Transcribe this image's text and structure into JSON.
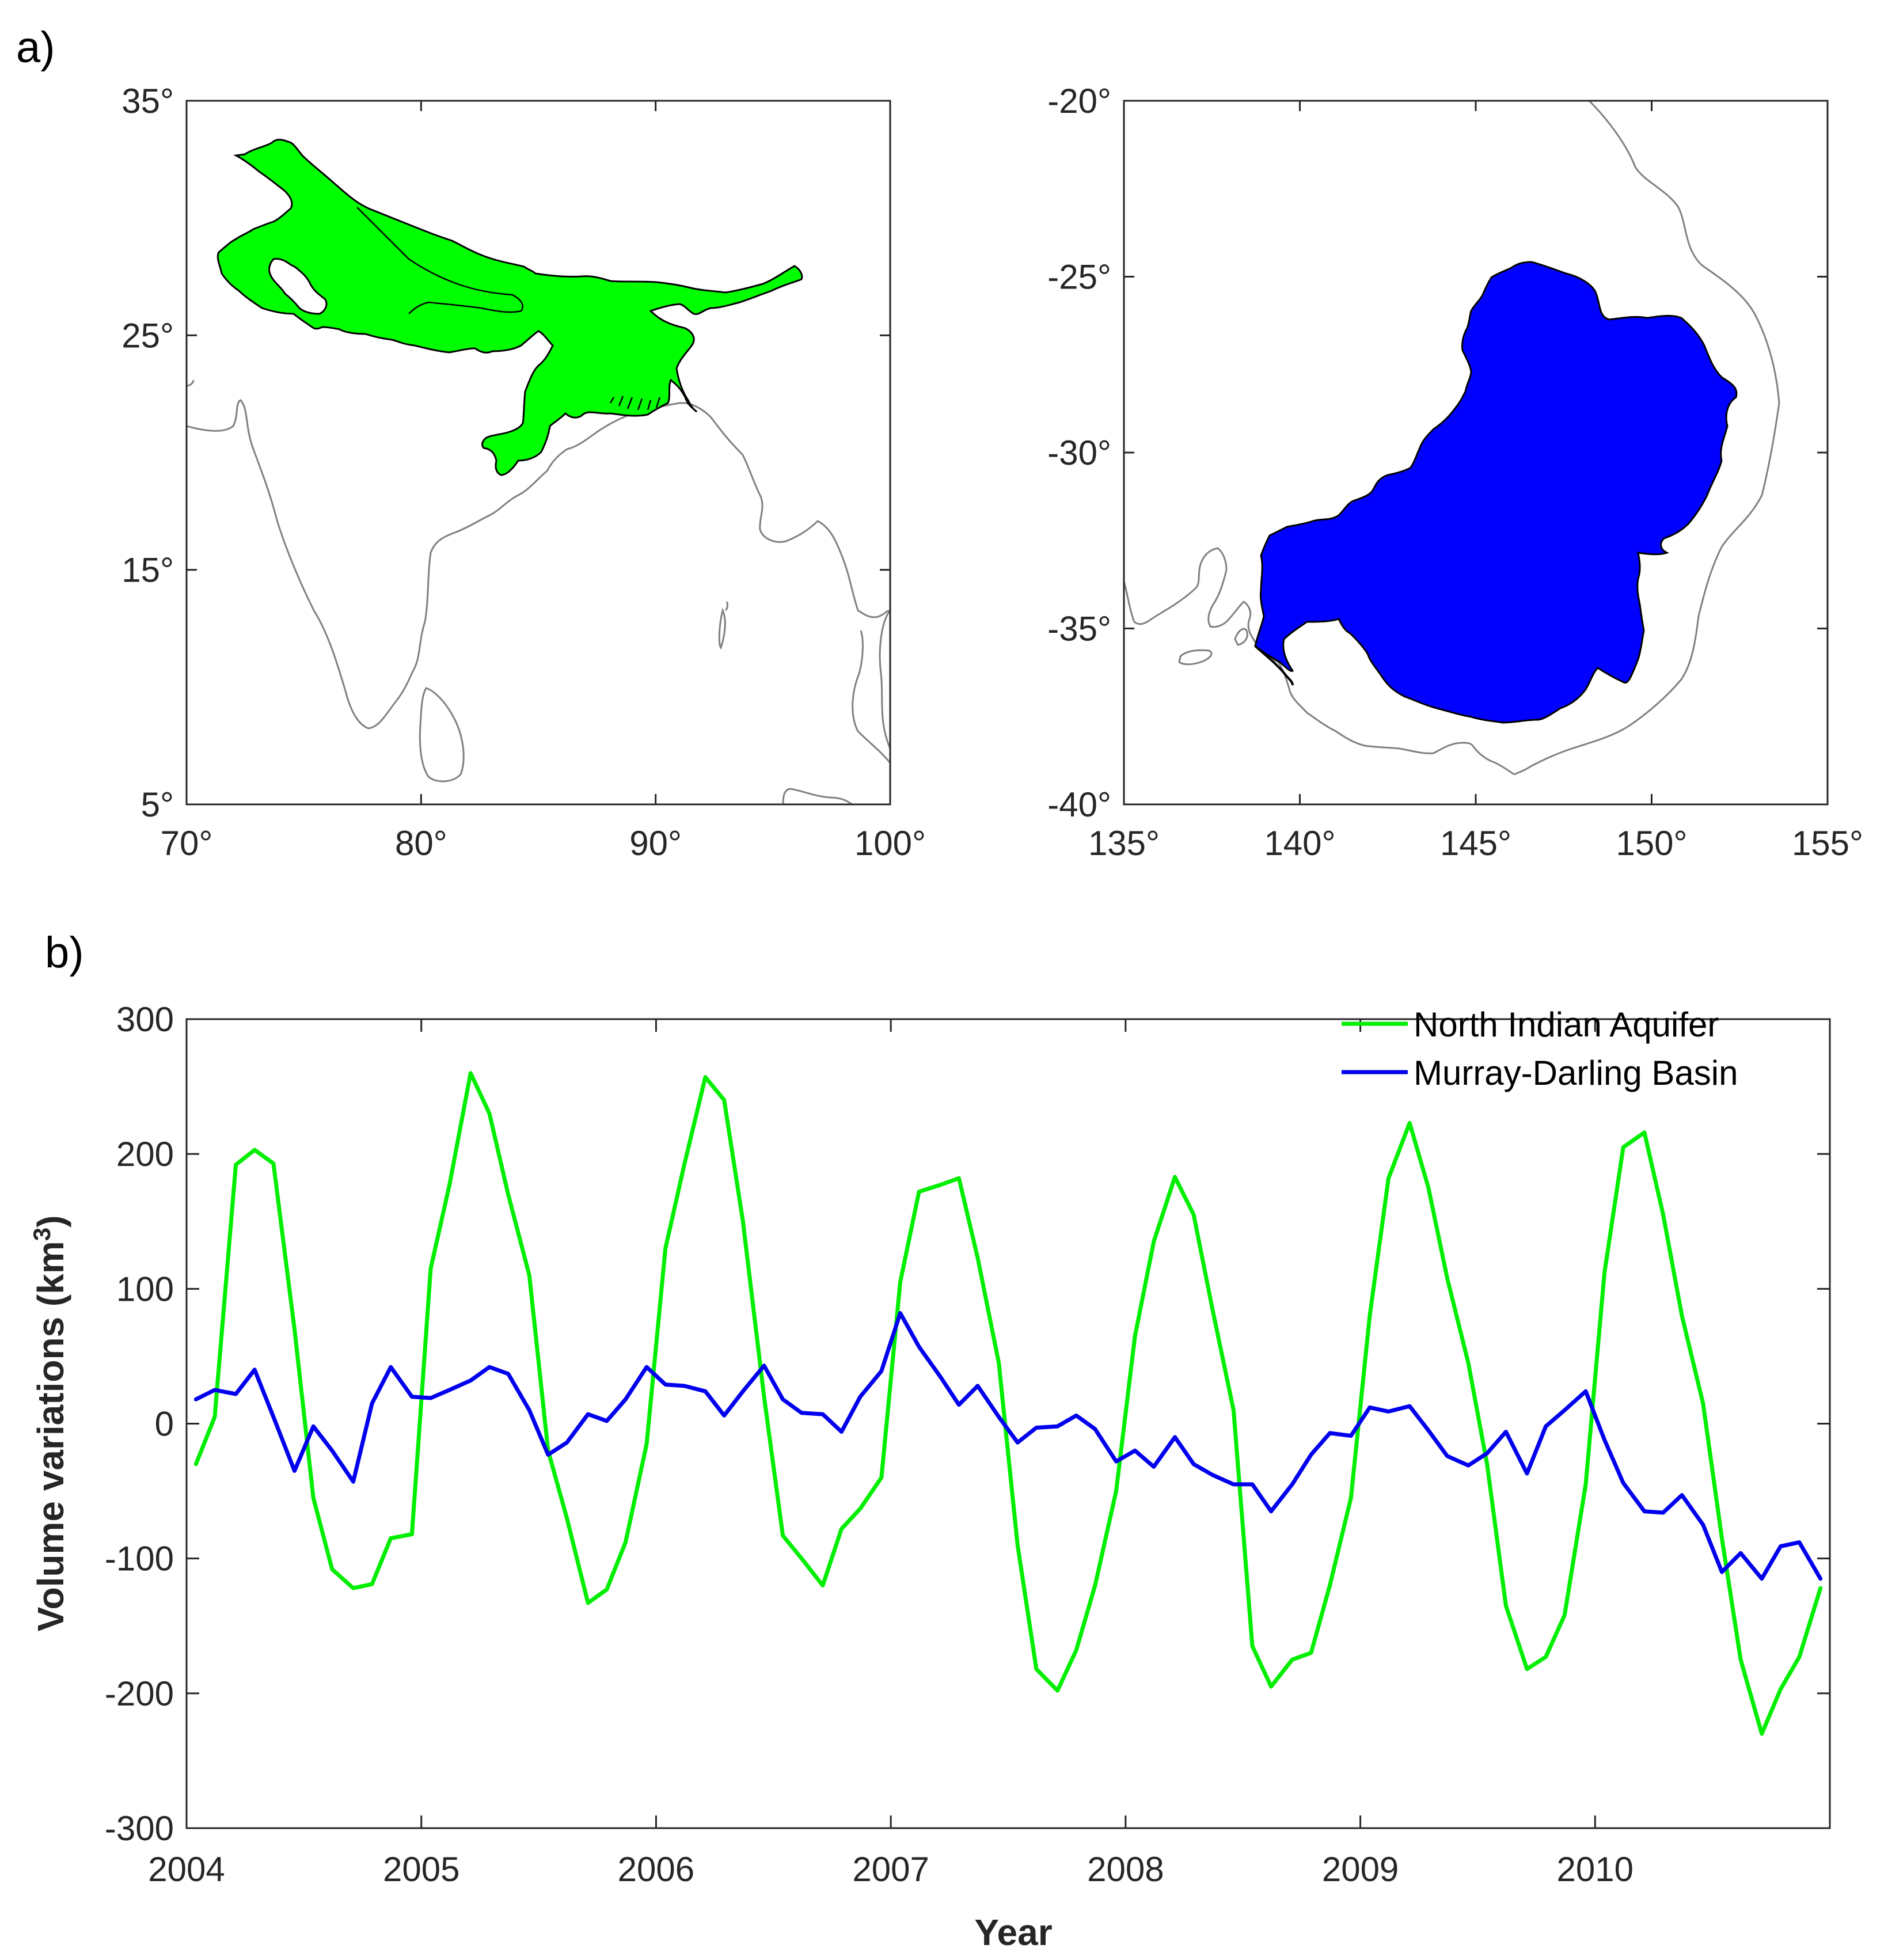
{
  "panel_a": {
    "label": "a)",
    "maps": [
      {
        "name": "North Indian Aquifer",
        "fill": "#00ff00",
        "lon_range": [
          70,
          100
        ],
        "lat_range": [
          5,
          35
        ],
        "x_ticks": [
          "70°",
          "80°",
          "90°",
          "100°"
        ],
        "y_ticks": [
          "35°",
          "25°",
          "15°",
          "5°"
        ]
      },
      {
        "name": "Murray-Darling Basin",
        "fill": "#0000ff",
        "lon_range": [
          135,
          155
        ],
        "lat_range": [
          -40,
          -20
        ],
        "x_ticks": [
          "135°",
          "140°",
          "145°",
          "150°",
          "155°"
        ],
        "y_ticks": [
          "-20°",
          "-25°",
          "-30°",
          "-35°",
          "-40°"
        ]
      }
    ]
  },
  "panel_b": {
    "label": "b)"
  },
  "chart_data": {
    "type": "line",
    "title": "",
    "xlabel": "Year",
    "ylabel": "Volume variations (km",
    "ylabel_sup": "3",
    "ylabel_close": ")",
    "xlim": [
      2004,
      2011
    ],
    "ylim": [
      -300,
      300
    ],
    "x_ticks": [
      "2004",
      "2005",
      "2006",
      "2007",
      "2008",
      "2009",
      "2010"
    ],
    "y_ticks": [
      "300",
      "200",
      "100",
      "0",
      "-100",
      "-200",
      "-300"
    ],
    "legend_position": "top-right",
    "x": [
      2004.04,
      2004.12,
      2004.21,
      2004.29,
      2004.37,
      2004.46,
      2004.54,
      2004.62,
      2004.71,
      2004.79,
      2004.87,
      2004.96,
      2005.04,
      2005.12,
      2005.21,
      2005.29,
      2005.37,
      2005.46,
      2005.54,
      2005.62,
      2005.71,
      2005.79,
      2005.87,
      2005.96,
      2006.04,
      2006.12,
      2006.21,
      2006.29,
      2006.37,
      2006.46,
      2006.54,
      2006.62,
      2006.71,
      2006.79,
      2006.87,
      2006.96,
      2007.04,
      2007.12,
      2007.21,
      2007.29,
      2007.37,
      2007.46,
      2007.54,
      2007.62,
      2007.71,
      2007.79,
      2007.87,
      2007.96,
      2008.04,
      2008.12,
      2008.21,
      2008.29,
      2008.37,
      2008.46,
      2008.54,
      2008.62,
      2008.71,
      2008.79,
      2008.87,
      2008.96,
      2009.04,
      2009.12,
      2009.21,
      2009.29,
      2009.37,
      2009.46,
      2009.54,
      2009.62,
      2009.71,
      2009.79,
      2009.87,
      2009.96,
      2010.04,
      2010.12,
      2010.21,
      2010.29,
      2010.37,
      2010.46,
      2010.54,
      2010.62,
      2010.71,
      2010.79,
      2010.87,
      2010.96
    ],
    "series": [
      {
        "name": "North Indian Aquifer",
        "color": "#00ee00",
        "values": [
          -30,
          5,
          192,
          203,
          193,
          70,
          -55,
          -108,
          -122,
          -119,
          -85,
          -82,
          115,
          177,
          260,
          230,
          170,
          110,
          -20,
          -70,
          -133,
          -123,
          -88,
          -15,
          130,
          192,
          257,
          240,
          150,
          20,
          -83,
          -100,
          -120,
          -78,
          -63,
          -40,
          105,
          172,
          177,
          182,
          123,
          45,
          -90,
          -182,
          -198,
          -168,
          -120,
          -50,
          65,
          135,
          183,
          155,
          85,
          10,
          -165,
          -195,
          -175,
          -170,
          -120,
          -55,
          80,
          182,
          223,
          175,
          108,
          45,
          -30,
          -135,
          -182,
          -173,
          -142,
          -45,
          112,
          205,
          216,
          155,
          80,
          15,
          -85,
          -175,
          -230,
          -197,
          -173,
          -122
        ]
      },
      {
        "name": "Murray-Darling Basin",
        "color": "#0000ee",
        "values": [
          18,
          25,
          22,
          40,
          5,
          -35,
          -2,
          -20,
          -43,
          15,
          42,
          20,
          19,
          25,
          32,
          42,
          37,
          10,
          -23,
          -14,
          7,
          2,
          18,
          42,
          29,
          28,
          24,
          6,
          24,
          43,
          18,
          8,
          7,
          -6,
          20,
          39,
          82,
          57,
          35,
          14,
          28,
          5,
          -14,
          -3,
          -2,
          6,
          -4,
          -28,
          -20,
          -32,
          -10,
          -30,
          -38,
          -45,
          -45,
          -65,
          -45,
          -23,
          -7,
          -9,
          12,
          9,
          13,
          -5,
          -24,
          -31,
          -22,
          -6,
          -37,
          -2,
          10,
          24,
          -12,
          -44,
          -65,
          -66,
          -53,
          -75,
          -110,
          -96,
          -115,
          -91,
          -88,
          -115
        ]
      }
    ]
  }
}
